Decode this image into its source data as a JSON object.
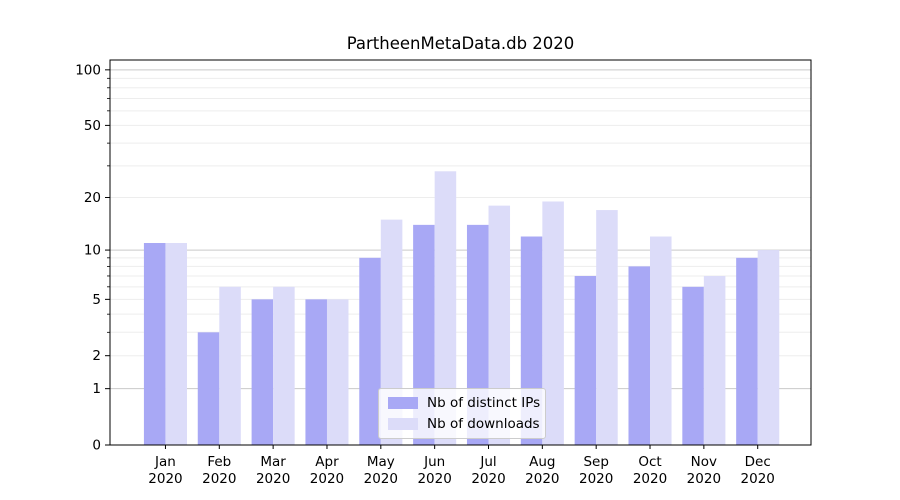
{
  "figure": {
    "title": "PartheenMetaData.db 2020",
    "background": "#ffffff"
  },
  "legend": {
    "items": [
      {
        "label": "Nb of distinct IPs",
        "color": "#a8a8f5"
      },
      {
        "label": "Nb of downloads",
        "color": "#dcdcf9"
      }
    ]
  },
  "chart_data": {
    "type": "bar",
    "title": "PartheenMetaData.db 2020",
    "categories": [
      "Jan",
      "Feb",
      "Mar",
      "Apr",
      "May",
      "Jun",
      "Jul",
      "Aug",
      "Sep",
      "Oct",
      "Nov",
      "Dec"
    ],
    "category_year": "2020",
    "series": [
      {
        "name": "Nb of distinct IPs",
        "color": "#a8a8f5",
        "values": [
          11,
          3,
          5,
          5,
          9,
          14,
          14,
          12,
          7,
          8,
          6,
          9
        ]
      },
      {
        "name": "Nb of downloads",
        "color": "#dcdcf9",
        "values": [
          11,
          6,
          6,
          5,
          15,
          28,
          18,
          19,
          17,
          12,
          7,
          10
        ]
      }
    ],
    "xlabel": "",
    "ylabel": "",
    "yscale": "log1p",
    "ylim": [
      0,
      113
    ],
    "yticks": [
      0,
      1,
      2,
      5,
      10,
      20,
      50,
      100
    ],
    "major_grid_values": [
      1,
      10,
      100
    ],
    "minor_grid_values": [
      2,
      3,
      4,
      5,
      6,
      7,
      8,
      9,
      20,
      30,
      40,
      50,
      60,
      70,
      80,
      90
    ],
    "grid": "horizontal",
    "grid_major_color": "#c9c9c9",
    "grid_minor_color": "#ededed",
    "axis_color": "#000000",
    "legend_position": "lower center"
  }
}
